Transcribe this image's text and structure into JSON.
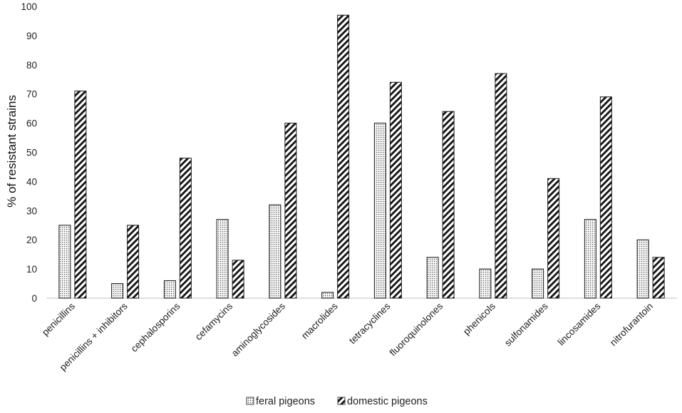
{
  "chart_data": {
    "type": "bar",
    "title": "",
    "xlabel": "",
    "ylabel": "% of resistant strains",
    "ylim": [
      0,
      100
    ],
    "yticks": [
      0,
      10,
      20,
      30,
      40,
      50,
      60,
      70,
      80,
      90,
      100
    ],
    "grid": false,
    "legend_position": "bottom",
    "categories": [
      "penicillins",
      "penicillins + inhibitors",
      "cephalosporins",
      "cefamycins",
      "aminoglycosides",
      "macrolides",
      "tetracyclines",
      "fluoroquinolones",
      "phenicols",
      "sulfonamides",
      "lincosamides",
      "nitrofurantoin"
    ],
    "series": [
      {
        "name": "feral pigeons",
        "pattern": "dotted",
        "values": [
          25,
          5,
          6,
          27,
          32,
          2,
          60,
          14,
          10,
          10,
          27,
          20
        ]
      },
      {
        "name": "domestic pigeons",
        "pattern": "diagonal-hatch",
        "values": [
          71,
          25,
          48,
          13,
          60,
          97,
          74,
          64,
          77,
          41,
          69,
          14
        ]
      }
    ],
    "colors": {
      "ink": "#1a1a1a",
      "axis": "#bfbfbf",
      "background": "#ffffff"
    }
  }
}
